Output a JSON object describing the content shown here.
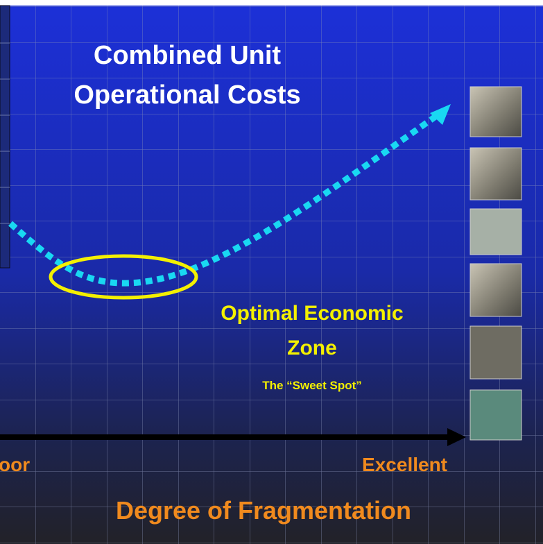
{
  "title": {
    "lines": [
      "Combined Unit",
      "Operational Costs"
    ]
  },
  "annotation": {
    "lines": [
      "Optimal Economic",
      "Zone"
    ],
    "subtitle": "The “Sweet Spot”"
  },
  "axis": {
    "left_label": "oor",
    "right_label": "Excellent",
    "title": "Degree of Fragmentation"
  }
}
